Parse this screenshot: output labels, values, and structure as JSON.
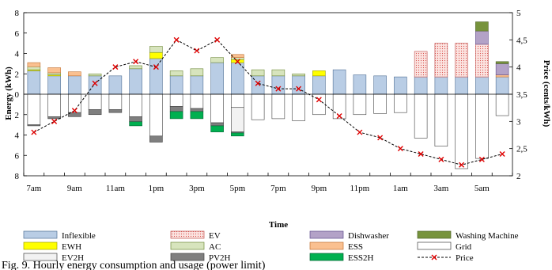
{
  "chart_data": {
    "type": "bar",
    "xlabel": "Time",
    "ylabel": "Energy (kWh)",
    "y2label": "Price (cents/kWh)",
    "ylim": [
      -8,
      8
    ],
    "y2lim": [
      2,
      5
    ],
    "y_ticks": [
      "8",
      "6",
      "4",
      "2",
      "0",
      "2",
      "4",
      "6",
      "8"
    ],
    "y2_ticks": [
      "5",
      "4,5",
      "4",
      "3,5",
      "3",
      "2,5",
      "2"
    ],
    "x_tick_labels": [
      "7am",
      "9am",
      "11am",
      "1pm",
      "3pm",
      "5pm",
      "7pm",
      "9pm",
      "11pm",
      "1am",
      "3am",
      "5am"
    ],
    "caption": "Fig. 9. Hourly energy consumption and usage (power limit)",
    "series_styles": {
      "Inflexible": {
        "fill": "#b9cde5",
        "stroke": "#4f6f95"
      },
      "EV": {
        "fill": "#f7c9c4",
        "stroke": "#c0504d",
        "pattern": "dots"
      },
      "Dishwasher": {
        "fill": "#b3a2c7",
        "stroke": "#5f4b8b"
      },
      "Washing Machine": {
        "fill": "#77933c",
        "stroke": "#4f6228"
      },
      "EWH": {
        "fill": "#ffff00",
        "stroke": "#a0a000"
      },
      "AC": {
        "fill": "#d7e4bd",
        "stroke": "#6f8a3a"
      },
      "ESS": {
        "fill": "#fac090",
        "stroke": "#c07030"
      },
      "Grid": {
        "fill": "#ffffff",
        "stroke": "#404040"
      },
      "EV2H": {
        "fill": "#f2f2f2",
        "stroke": "#404040"
      },
      "PV2H": {
        "fill": "#7f7f7f",
        "stroke": "#404040"
      },
      "ESS2H": {
        "fill": "#00b050",
        "stroke": "#006030"
      },
      "Price": {
        "stroke": "#000000",
        "marker": "#e00000"
      }
    },
    "positive_series": [
      {
        "name": "Inflexible",
        "values": [
          2.3,
          1.8,
          1.8,
          1.8,
          1.8,
          2.5,
          3.5,
          1.8,
          1.8,
          3.1,
          3.1,
          1.8,
          1.8,
          1.8,
          1.8,
          2.4,
          1.9,
          1.8,
          1.7,
          1.7,
          1.7,
          1.7,
          1.7,
          1.7
        ]
      },
      {
        "name": "EWH",
        "values": [
          0.1,
          0.1,
          0,
          0,
          0,
          0,
          0.6,
          0,
          0,
          0,
          0.3,
          0,
          0,
          0,
          0.5,
          0,
          0,
          0,
          0,
          0,
          0,
          0,
          0,
          0
        ]
      },
      {
        "name": "AC",
        "values": [
          0.3,
          0.2,
          0,
          0.2,
          0,
          0.3,
          0.6,
          0.5,
          0.7,
          0.5,
          0.2,
          0.6,
          0.6,
          0.2,
          0,
          0,
          0,
          0,
          0,
          0,
          0,
          0,
          0,
          0
        ]
      },
      {
        "name": "ESS",
        "values": [
          0.4,
          0.5,
          0.4,
          0,
          0,
          0,
          0,
          0,
          0,
          0,
          0.3,
          0,
          0,
          0,
          0,
          0,
          0,
          0,
          0,
          0,
          0,
          0,
          0,
          0.2
        ]
      },
      {
        "name": "EV",
        "values": [
          0,
          0,
          0,
          0,
          0,
          0,
          0,
          0,
          0,
          0,
          0,
          0,
          0,
          0,
          0,
          0,
          0,
          0,
          0,
          2.5,
          3.3,
          3.3,
          3.2,
          0
        ]
      },
      {
        "name": "Dishwasher",
        "values": [
          0,
          0,
          0,
          0,
          0,
          0,
          0,
          0,
          0,
          0,
          0,
          0,
          0,
          0,
          0,
          0,
          0,
          0,
          0,
          0,
          0,
          0,
          1.3,
          1.1
        ]
      },
      {
        "name": "Washing Machine",
        "values": [
          0,
          0,
          0,
          0,
          0,
          0,
          0,
          0,
          0,
          0,
          0,
          0,
          0,
          0,
          0,
          0,
          0,
          0,
          0,
          0,
          0,
          0,
          0.9,
          0.2
        ]
      }
    ],
    "negative_series": [
      {
        "name": "Grid",
        "values": [
          3.0,
          2.2,
          1.8,
          1.5,
          1.5,
          2.2,
          4.1,
          1.2,
          1.4,
          2.8,
          1.3,
          2.5,
          2.4,
          2.6,
          2.0,
          2.4,
          2.0,
          1.9,
          1.8,
          4.3,
          5.1,
          7.3,
          6.3,
          2.1
        ]
      },
      {
        "name": "EV2H",
        "values": [
          0,
          0,
          0,
          0,
          0,
          0,
          0,
          0,
          0,
          0,
          2.4,
          0,
          0,
          0,
          0,
          0,
          0,
          0,
          0,
          0,
          0,
          0,
          0,
          0
        ]
      },
      {
        "name": "PV2H",
        "values": [
          0.1,
          0.2,
          0.4,
          0.5,
          0.3,
          0.5,
          0.6,
          0.5,
          0.3,
          0.3,
          0.1,
          0,
          0,
          0,
          0,
          0,
          0,
          0,
          0,
          0,
          0,
          0,
          0,
          0
        ]
      },
      {
        "name": "ESS2H",
        "values": [
          0,
          0,
          0,
          0,
          0,
          0.4,
          0,
          0.7,
          0.7,
          0.6,
          0.3,
          0,
          0,
          0,
          0,
          0,
          0,
          0,
          0,
          0,
          0,
          0,
          0,
          0
        ]
      }
    ],
    "price": [
      2.8,
      3.0,
      3.2,
      3.7,
      4.0,
      4.1,
      4.0,
      4.5,
      4.3,
      4.5,
      4.1,
      3.7,
      3.6,
      3.6,
      3.4,
      3.1,
      2.8,
      2.7,
      2.5,
      2.4,
      2.3,
      2.2,
      2.3,
      2.4
    ],
    "legend": [
      [
        "Inflexible",
        "EV",
        "Dishwasher",
        "Washing Machine"
      ],
      [
        "EWH",
        "AC",
        "ESS",
        "Grid"
      ],
      [
        "EV2H",
        "PV2H",
        "ESS2H",
        "Price"
      ]
    ]
  }
}
